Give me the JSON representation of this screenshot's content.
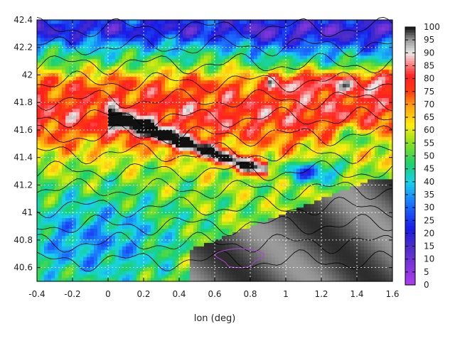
{
  "chart_data": {
    "type": "heatmap",
    "title": "",
    "xlabel": "lon (deg)",
    "ylabel": "",
    "xlim": [
      -0.4,
      1.6
    ],
    "ylim": [
      40.5,
      42.4
    ],
    "x_ticks": [
      "-0.4",
      "-0.2",
      "0",
      "0.2",
      "0.4",
      "0.6",
      "0.8",
      "1",
      "1.2",
      "1.4",
      "1.6"
    ],
    "y_ticks": [
      "40.6",
      "40.8",
      "41",
      "41.2",
      "41.4",
      "41.6",
      "41.8",
      "42",
      "42.2",
      "42.4"
    ],
    "colorbar": {
      "min": 0,
      "max": 100,
      "ticks": [
        "0",
        "5",
        "10",
        "15",
        "20",
        "25",
        "30",
        "35",
        "40",
        "45",
        "50",
        "55",
        "60",
        "65",
        "70",
        "75",
        "80",
        "85",
        "90",
        "95",
        "100"
      ],
      "stops": [
        {
          "v": 0,
          "c": "#b03cf0"
        },
        {
          "v": 15,
          "c": "#4a2dc8"
        },
        {
          "v": 22,
          "c": "#1a1ae6"
        },
        {
          "v": 32,
          "c": "#1a78ff"
        },
        {
          "v": 40,
          "c": "#18d2ea"
        },
        {
          "v": 47,
          "c": "#1ad26e"
        },
        {
          "v": 55,
          "c": "#8ae01c"
        },
        {
          "v": 62,
          "c": "#ffee10"
        },
        {
          "v": 70,
          "c": "#ff9a10"
        },
        {
          "v": 75,
          "c": "#ff3a10"
        },
        {
          "v": 81,
          "c": "#ff2020"
        },
        {
          "v": 86,
          "c": "#ff8a8a"
        },
        {
          "v": 90,
          "c": "#e8e8e8"
        },
        {
          "v": 95,
          "c": "#9a9a9a"
        },
        {
          "v": 100,
          "c": "#111111"
        }
      ]
    },
    "grid": true,
    "contours": true
  }
}
